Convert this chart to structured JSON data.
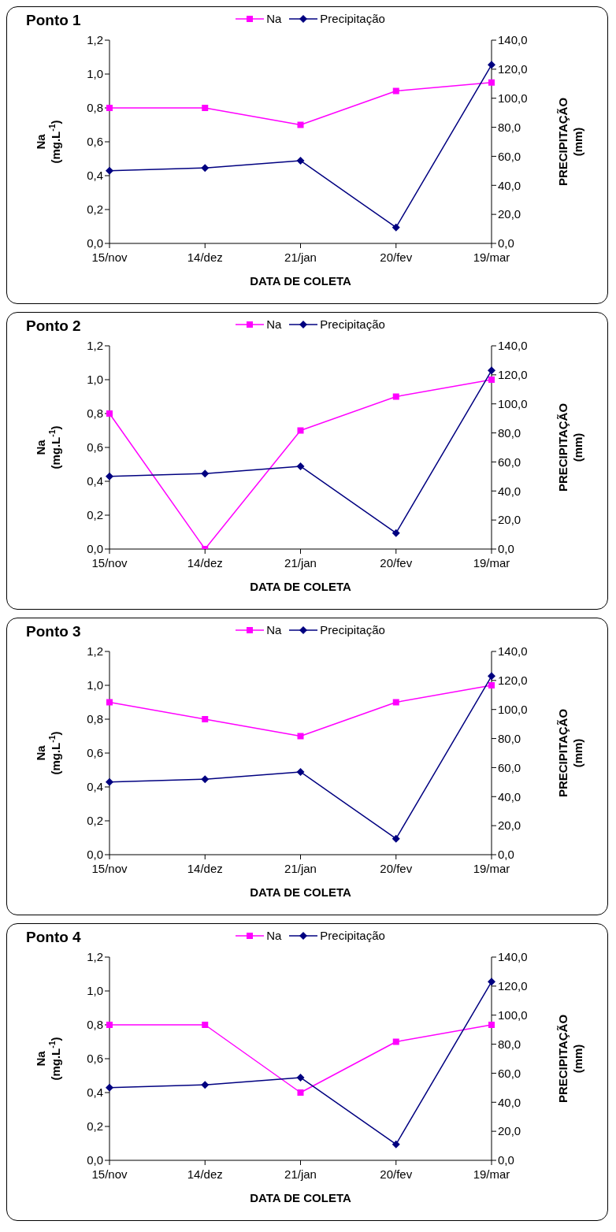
{
  "chart_data": [
    {
      "type": "line",
      "title": "Ponto 1",
      "xlabel": "DATA DE COLETA",
      "ylabel": "Na\n(mg.L$^{-1}$)",
      "y2label": "PRECIPITAÇÃO\n(mm)",
      "categories": [
        "15/nov",
        "14/dez",
        "21/jan",
        "20/fev",
        "19/mar"
      ],
      "series": [
        {
          "name": "Na",
          "color": "#ff00ff",
          "marker": "square",
          "values": [
            0.8,
            0.8,
            0.7,
            0.9,
            0.95
          ]
        },
        {
          "name": "Precipitação",
          "color": "#000080",
          "marker": "diamond",
          "axis": "y2",
          "values": [
            50,
            52,
            57,
            11,
            123
          ]
        }
      ],
      "ylim": [
        0,
        1.2
      ],
      "yticks": [
        {
          "value": 0,
          "label": "0,0"
        },
        {
          "value": 0.2,
          "label": "0,2"
        },
        {
          "value": 0.4,
          "label": "0,4"
        },
        {
          "value": 0.6,
          "label": "0,6"
        },
        {
          "value": 0.8,
          "label": "0,8"
        },
        {
          "value": 1,
          "label": "1,0"
        },
        {
          "value": 1.2,
          "label": "1,2"
        }
      ],
      "y2lim": [
        0,
        140
      ],
      "y2ticks": [
        {
          "value": 0,
          "label": "0,0"
        },
        {
          "value": 20,
          "label": "20,0"
        },
        {
          "value": 40,
          "label": "40,0"
        },
        {
          "value": 60,
          "label": "60,0"
        },
        {
          "value": 80,
          "label": "80,0"
        },
        {
          "value": 100,
          "label": "100,0"
        },
        {
          "value": 120,
          "label": "120,0"
        },
        {
          "value": 140,
          "label": "140,0"
        }
      ],
      "legend": "top",
      "grid": false,
      "line_style": "solid"
    },
    {
      "type": "line",
      "title": "Ponto 2",
      "xlabel": "DATA DE COLETA",
      "ylabel": "Na\n(mg.L$^{-1}$)",
      "y2label": "PRECIPITAÇÃO\n(mm)",
      "categories": [
        "15/nov",
        "14/dez",
        "21/jan",
        "20/fev",
        "19/mar"
      ],
      "series": [
        {
          "name": "Na",
          "color": "#ff00ff",
          "marker": "square",
          "values": [
            0.8,
            0.0,
            0.7,
            0.9,
            1.0
          ]
        },
        {
          "name": "Precipitação",
          "color": "#000080",
          "marker": "diamond",
          "axis": "y2",
          "values": [
            50,
            52,
            57,
            11,
            123
          ]
        }
      ],
      "ylim": [
        0,
        1.2
      ],
      "yticks": [
        {
          "value": 0,
          "label": "0,0"
        },
        {
          "value": 0.2,
          "label": "0,2"
        },
        {
          "value": 0.4,
          "label": "0,4"
        },
        {
          "value": 0.6,
          "label": "0,6"
        },
        {
          "value": 0.8,
          "label": "0,8"
        },
        {
          "value": 1,
          "label": "1,0"
        },
        {
          "value": 1.2,
          "label": "1,2"
        }
      ],
      "y2lim": [
        0,
        140
      ],
      "y2ticks": [
        {
          "value": 0,
          "label": "0,0"
        },
        {
          "value": 20,
          "label": "20,0"
        },
        {
          "value": 40,
          "label": "40,0"
        },
        {
          "value": 60,
          "label": "60,0"
        },
        {
          "value": 80,
          "label": "80,0"
        },
        {
          "value": 100,
          "label": "100,0"
        },
        {
          "value": 120,
          "label": "120,0"
        },
        {
          "value": 140,
          "label": "140,0"
        }
      ],
      "legend": "top",
      "grid": false,
      "line_style": "solid"
    },
    {
      "type": "line",
      "title": "Ponto 3",
      "xlabel": "DATA DE COLETA",
      "ylabel": "Na\n(mg.L$^{-1}$)",
      "y2label": "PRECIPITAÇÃO\n(mm)",
      "categories": [
        "15/nov",
        "14/dez",
        "21/jan",
        "20/fev",
        "19/mar"
      ],
      "series": [
        {
          "name": "Na",
          "color": "#ff00ff",
          "marker": "square",
          "values": [
            0.9,
            0.8,
            0.7,
            0.9,
            1.0
          ]
        },
        {
          "name": "Precipitação",
          "color": "#000080",
          "marker": "diamond",
          "axis": "y2",
          "values": [
            50,
            52,
            57,
            11,
            123
          ]
        }
      ],
      "ylim": [
        0,
        1.2
      ],
      "yticks": [
        {
          "value": 0,
          "label": "0,0"
        },
        {
          "value": 0.2,
          "label": "0,2"
        },
        {
          "value": 0.4,
          "label": "0,4"
        },
        {
          "value": 0.6,
          "label": "0,6"
        },
        {
          "value": 0.8,
          "label": "0,8"
        },
        {
          "value": 1,
          "label": "1,0"
        },
        {
          "value": 1.2,
          "label": "1,2"
        }
      ],
      "y2lim": [
        0,
        140
      ],
      "y2ticks": [
        {
          "value": 0,
          "label": "0,0"
        },
        {
          "value": 20,
          "label": "20,0"
        },
        {
          "value": 40,
          "label": "40,0"
        },
        {
          "value": 60,
          "label": "60,0"
        },
        {
          "value": 80,
          "label": "80,0"
        },
        {
          "value": 100,
          "label": "100,0"
        },
        {
          "value": 120,
          "label": "120,0"
        },
        {
          "value": 140,
          "label": "140,0"
        }
      ],
      "legend": "top",
      "grid": false,
      "line_style": "solid"
    },
    {
      "type": "line",
      "title": "Ponto 4",
      "xlabel": "DATA DE COLETA",
      "ylabel": "Na\n(mg.L$^{-1}$)",
      "y2label": "PRECIPITAÇÃO\n(mm)",
      "categories": [
        "15/nov",
        "14/dez",
        "21/jan",
        "20/fev",
        "19/mar"
      ],
      "series": [
        {
          "name": "Na",
          "color": "#ff00ff",
          "marker": "square",
          "values": [
            0.8,
            0.8,
            0.4,
            0.7,
            0.8
          ]
        },
        {
          "name": "Precipitação",
          "color": "#000080",
          "marker": "diamond",
          "axis": "y2",
          "values": [
            50,
            52,
            57,
            11,
            123
          ]
        }
      ],
      "ylim": [
        0,
        1.2
      ],
      "yticks": [
        {
          "value": 0,
          "label": "0,0"
        },
        {
          "value": 0.2,
          "label": "0,2"
        },
        {
          "value": 0.4,
          "label": "0,4"
        },
        {
          "value": 0.6,
          "label": "0,6"
        },
        {
          "value": 0.8,
          "label": "0,8"
        },
        {
          "value": 1,
          "label": "1,0"
        },
        {
          "value": 1.2,
          "label": "1,2"
        }
      ],
      "y2lim": [
        0,
        140
      ],
      "y2ticks": [
        {
          "value": 0,
          "label": "0,0"
        },
        {
          "value": 20,
          "label": "20,0"
        },
        {
          "value": 40,
          "label": "40,0"
        },
        {
          "value": 60,
          "label": "60,0"
        },
        {
          "value": 80,
          "label": "80,0"
        },
        {
          "value": 100,
          "label": "100,0"
        },
        {
          "value": 120,
          "label": "120,0"
        },
        {
          "value": 140,
          "label": "140,0"
        }
      ],
      "legend": "top",
      "grid": false,
      "line_style": "solid"
    }
  ]
}
